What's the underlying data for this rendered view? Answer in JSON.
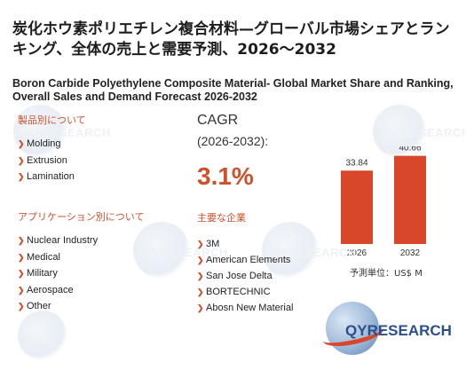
{
  "title_jp": "炭化ホウ素ポリエチレン複合材料—グローバル市場シェアとランキング、全体の売上と需要予測、2026～2032",
  "title_en": "Boron Carbide Polyethylene Composite Material- Global Market Share and Ranking, Overall Sales and Demand Forecast 2026-2032",
  "product_section": {
    "heading": "製品別について",
    "items": [
      "Molding",
      "Extrusion",
      "Lamination"
    ]
  },
  "application_section": {
    "heading": "アプリケーション別について",
    "items": [
      "Nuclear Industry",
      "Medical",
      "Military",
      "Aerospace",
      "Other"
    ]
  },
  "cagr": {
    "label": "CAGR",
    "period": "(2026-2032):",
    "value": "3.1%"
  },
  "companies_section": {
    "heading": "主要な企業",
    "items": [
      "3M",
      "American Elements",
      "San Jose Delta",
      "BORTECHNIC",
      "Abosn New Material"
    ]
  },
  "unit_label": "予測単位：US$ M",
  "logo": {
    "prefix": "QY",
    "suffix": "RESEARCH"
  },
  "colors": {
    "accent": "#d0502a",
    "bar": "#d9472a",
    "logo_blue": "#2b4f8a"
  },
  "chart_data": {
    "type": "bar",
    "categories": [
      "2026",
      "2032"
    ],
    "values": [
      33.84,
      40.66
    ],
    "value_labels": [
      "33.84",
      "40.66"
    ],
    "ylim": [
      0,
      45
    ],
    "grid": false,
    "xlabel": "",
    "ylabel": ""
  }
}
